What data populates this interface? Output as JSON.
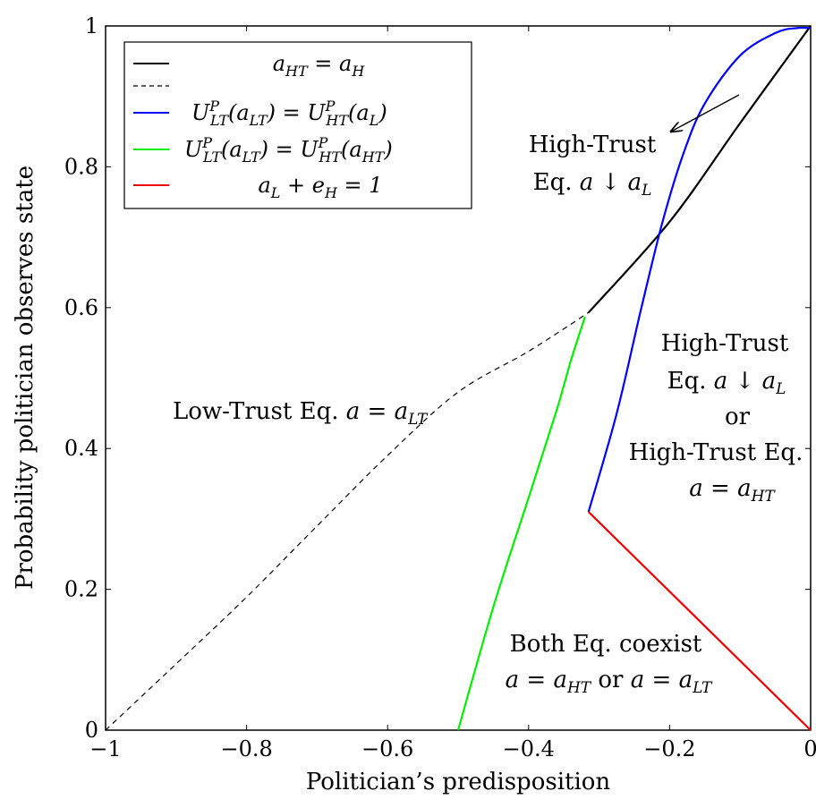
{
  "chart_data": {
    "type": "line",
    "xlabel": "Politician’s predisposition",
    "ylabel": "Probability politician observes state",
    "xlim": [
      -1,
      0
    ],
    "ylim": [
      0,
      1
    ],
    "x_ticks": [
      "−1",
      "−0.8",
      "−0.6",
      "−0.4",
      "−0.2",
      "0"
    ],
    "y_ticks": [
      "0",
      "0.2",
      "0.4",
      "0.6",
      "0.8",
      "1"
    ],
    "grid": false,
    "legend_position": "top-left",
    "series": [
      {
        "name": "a_HT = a_H",
        "color": "#000000",
        "style": "solid",
        "points": [
          [
            -0.315,
            0.593
          ],
          [
            -0.2,
            0.722
          ],
          [
            -0.1,
            0.862
          ],
          [
            0,
            1.0
          ]
        ]
      },
      {
        "name": "",
        "color": "#000000",
        "style": "dashed",
        "points": [
          [
            -1,
            0
          ],
          [
            -0.9,
            0.094
          ],
          [
            -0.8,
            0.189
          ],
          [
            -0.7,
            0.29
          ],
          [
            -0.6,
            0.39
          ],
          [
            -0.5,
            0.48
          ],
          [
            -0.4,
            0.538
          ],
          [
            -0.315,
            0.593
          ]
        ]
      },
      {
        "name": "U^P_LT(a_LT) = U^P_HT(a_L)",
        "color": "#0000ff",
        "style": "solid",
        "points": [
          [
            -0.315,
            0.31
          ],
          [
            -0.275,
            0.45
          ],
          [
            -0.24,
            0.6
          ],
          [
            -0.21,
            0.722
          ],
          [
            -0.18,
            0.82
          ],
          [
            -0.15,
            0.89
          ],
          [
            -0.1,
            0.958
          ],
          [
            -0.05,
            0.99
          ],
          [
            -0.02,
            0.997
          ],
          [
            0,
            0.997
          ]
        ]
      },
      {
        "name": "U^P_LT(a_LT) = U^P_HT(a_HT)",
        "color": "#00ee00",
        "style": "solid",
        "points": [
          [
            -0.5,
            0
          ],
          [
            -0.45,
            0.175
          ],
          [
            -0.4,
            0.33
          ],
          [
            -0.36,
            0.455
          ],
          [
            -0.34,
            0.525
          ],
          [
            -0.32,
            0.587
          ]
        ]
      },
      {
        "name": "a_L + e_H = 1",
        "color": "#ee0000",
        "style": "solid",
        "points": [
          [
            -0.315,
            0.31
          ],
          [
            0,
            0
          ]
        ]
      }
    ],
    "legend": [
      {
        "series": 0,
        "label": "aHT = aH"
      },
      {
        "series": 1,
        "label": ""
      },
      {
        "series": 2,
        "label": "UPLT(aLT) = UPHT(aL)"
      },
      {
        "series": 3,
        "label": "UPLT(aLT) = UPHT(aHT)"
      },
      {
        "series": 4,
        "label": "aL + eH = 1"
      }
    ],
    "annotations": [
      {
        "lines": [
          "High-Trust",
          "Eq. a ↓ aL"
        ],
        "pos": [
          -0.18,
          0.8
        ],
        "arrow_to": [
          -0.19,
          0.86
        ],
        "arrow_from": [
          -0.1,
          0.91
        ]
      },
      {
        "lines": [
          "High-Trust",
          "Eq. a ↓ aL",
          "or",
          "High-Trust Eq.",
          "a = aHT"
        ],
        "pos": [
          -0.12,
          0.55
        ]
      },
      {
        "lines": [
          "Low-Trust Eq. a = aLT"
        ],
        "pos": [
          -0.77,
          0.43
        ]
      },
      {
        "lines": [
          "Both Eq. coexist",
          "a = aHT or a = aLT"
        ],
        "pos": [
          -0.25,
          0.11
        ]
      }
    ]
  }
}
